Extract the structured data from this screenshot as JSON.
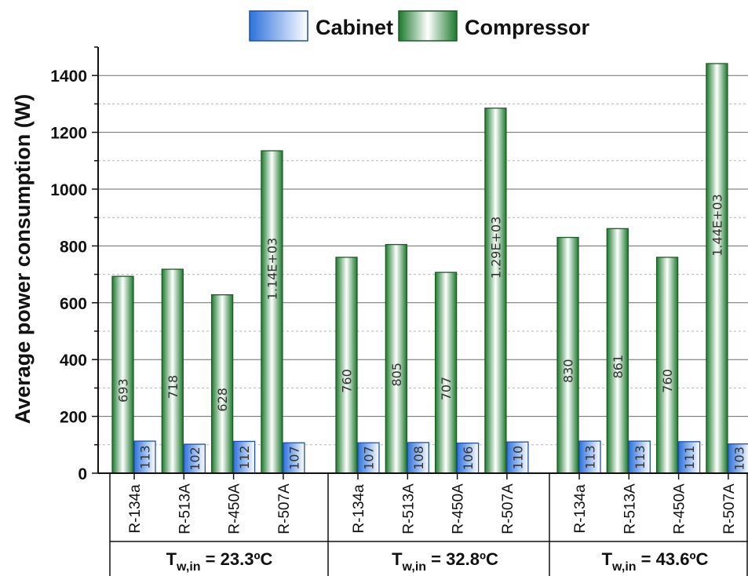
{
  "chart_data": {
    "type": "bar",
    "ylabel": "Average power consumption (W)",
    "ylim": [
      0,
      1500
    ],
    "yticks": [
      0,
      200,
      400,
      600,
      800,
      1000,
      1200,
      1400
    ],
    "grid": "horizontal major and minor",
    "legend_position": "top",
    "groups": [
      {
        "label_main": "T",
        "label_sub": "w,in",
        "label_rest": " = 23.3ºC",
        "categories": [
          "R-134a",
          "R-513A",
          "R-450A",
          "R-507A"
        ],
        "cabinet": [
          113,
          102,
          112,
          107
        ],
        "compressor": [
          693,
          718,
          628,
          1135
        ],
        "cabinet_labels": [
          "113",
          "102",
          "112",
          "107"
        ],
        "compressor_labels": [
          "693",
          "718",
          "628",
          "1.14E+03"
        ]
      },
      {
        "label_main": "T",
        "label_sub": "w,in",
        "label_rest": " = 32.8ºC",
        "categories": [
          "R-134a",
          "R-513A",
          "R-450A",
          "R-507A"
        ],
        "cabinet": [
          107,
          108,
          106,
          110
        ],
        "compressor": [
          760,
          805,
          707,
          1285
        ],
        "cabinet_labels": [
          "107",
          "108",
          "106",
          "110"
        ],
        "compressor_labels": [
          "760",
          "805",
          "707",
          "1.29E+03"
        ]
      },
      {
        "label_main": "T",
        "label_sub": "w,in",
        "label_rest": " = 43.6ºC",
        "categories": [
          "R-134a",
          "R-513A",
          "R-450A",
          "R-507A"
        ],
        "cabinet": [
          113,
          113,
          111,
          103
        ],
        "compressor": [
          830,
          861,
          760,
          1442
        ],
        "cabinet_labels": [
          "113",
          "113",
          "111",
          "103"
        ],
        "compressor_labels": [
          "830",
          "861",
          "760",
          "1.44E+03"
        ]
      }
    ],
    "series": [
      {
        "name": "Cabinet",
        "color": "#2f6fd6"
      },
      {
        "name": "Compressor",
        "color": "#1e7a2e"
      }
    ]
  }
}
